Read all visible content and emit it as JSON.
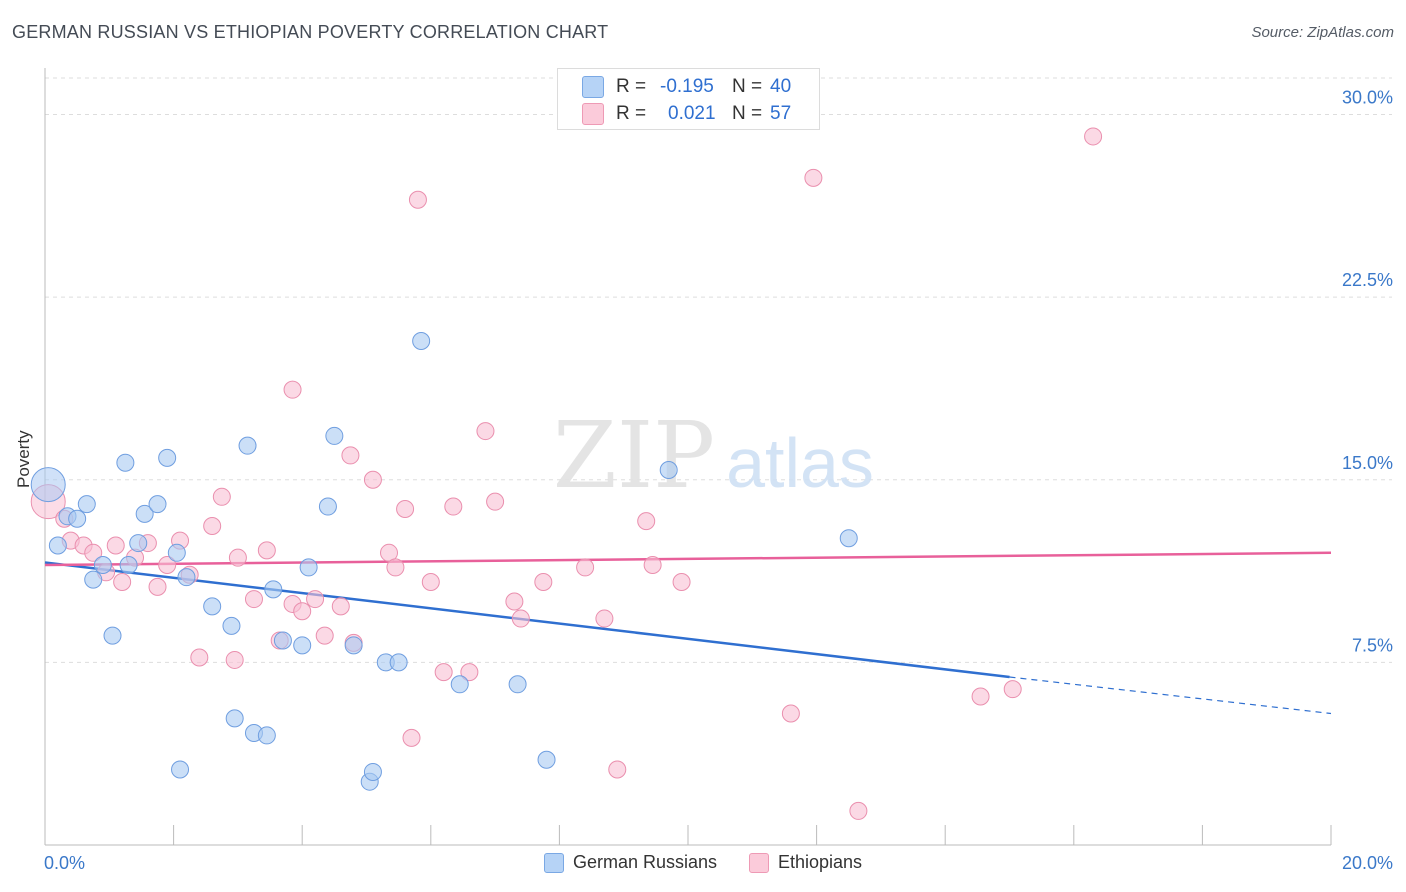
{
  "title": "GERMAN RUSSIAN VS ETHIOPIAN POVERTY CORRELATION CHART",
  "source": "Source: ZipAtlas.com",
  "watermark": {
    "zip": "ZIP",
    "atlas": "atlas"
  },
  "legend_top": [
    {
      "r_label": "R =",
      "r_value": "-0.195",
      "n_label": "N =",
      "n_value": "40",
      "color": "#b6d3f6"
    },
    {
      "r_label": "R =",
      "r_value": "0.021",
      "n_label": "N =",
      "n_value": "57",
      "color": "#fbcbda"
    }
  ],
  "legend_bottom": [
    "German Russians",
    "Ethiopians"
  ],
  "colors": {
    "blue_fill": "#a9c9f2",
    "blue_stroke": "#6f9ee0",
    "blue_line": "#2f6fd0",
    "pink_fill": "#f9c0d3",
    "pink_stroke": "#ea8fae",
    "pink_line": "#e8609a",
    "axis_text": "#3a78c9",
    "grid": "#dddddd"
  },
  "chart_data": {
    "type": "scatter",
    "title": "GERMAN RUSSIAN VS ETHIOPIAN POVERTY CORRELATION CHART",
    "xlabel": "",
    "ylabel": "Poverty",
    "xlim": [
      0,
      20
    ],
    "ylim": [
      0,
      31.5
    ],
    "x_tick_labels": [
      "0.0%",
      "20.0%"
    ],
    "y_ticks": [
      7.5,
      15.0,
      22.5,
      30.0
    ],
    "y_tick_labels": [
      "7.5%",
      "15.0%",
      "22.5%",
      "30.0%"
    ],
    "series": [
      {
        "name": "German Russians",
        "r": -0.195,
        "n": 40,
        "trend": {
          "x0": 0,
          "y0": 11.6,
          "x1": 15.0,
          "y1": 6.9,
          "dashed_to_x": 20.0,
          "dashed_to_y": 5.4
        },
        "points": [
          {
            "x": 0.05,
            "y": 14.8,
            "big": true
          },
          {
            "x": 0.2,
            "y": 12.3
          },
          {
            "x": 0.35,
            "y": 13.5
          },
          {
            "x": 0.5,
            "y": 13.4
          },
          {
            "x": 0.65,
            "y": 14.0
          },
          {
            "x": 0.75,
            "y": 10.9
          },
          {
            "x": 0.9,
            "y": 11.5
          },
          {
            "x": 1.05,
            "y": 8.6
          },
          {
            "x": 1.25,
            "y": 15.7
          },
          {
            "x": 1.3,
            "y": 11.5
          },
          {
            "x": 1.45,
            "y": 12.4
          },
          {
            "x": 1.55,
            "y": 13.6
          },
          {
            "x": 1.75,
            "y": 14.0
          },
          {
            "x": 1.9,
            "y": 15.9
          },
          {
            "x": 2.05,
            "y": 12.0
          },
          {
            "x": 2.2,
            "y": 11.0
          },
          {
            "x": 2.1,
            "y": 3.1
          },
          {
            "x": 2.6,
            "y": 9.8
          },
          {
            "x": 2.9,
            "y": 9.0
          },
          {
            "x": 2.95,
            "y": 5.2
          },
          {
            "x": 3.15,
            "y": 16.4
          },
          {
            "x": 3.25,
            "y": 4.6
          },
          {
            "x": 3.45,
            "y": 4.5
          },
          {
            "x": 3.55,
            "y": 10.5
          },
          {
            "x": 3.7,
            "y": 8.4
          },
          {
            "x": 4.0,
            "y": 8.2
          },
          {
            "x": 4.1,
            "y": 11.4
          },
          {
            "x": 4.4,
            "y": 13.9
          },
          {
            "x": 4.5,
            "y": 16.8
          },
          {
            "x": 4.8,
            "y": 8.2
          },
          {
            "x": 5.05,
            "y": 2.6
          },
          {
            "x": 5.1,
            "y": 3.0
          },
          {
            "x": 5.3,
            "y": 7.5
          },
          {
            "x": 5.5,
            "y": 7.5
          },
          {
            "x": 5.85,
            "y": 20.7
          },
          {
            "x": 6.45,
            "y": 6.6
          },
          {
            "x": 7.35,
            "y": 6.6
          },
          {
            "x": 7.8,
            "y": 3.5
          },
          {
            "x": 9.7,
            "y": 15.4
          },
          {
            "x": 12.5,
            "y": 12.6
          }
        ]
      },
      {
        "name": "Ethiopians",
        "r": 0.021,
        "n": 57,
        "trend": {
          "x0": 0,
          "y0": 11.5,
          "x1": 20.0,
          "y1": 12.0
        },
        "points": [
          {
            "x": 0.05,
            "y": 14.1,
            "big": true
          },
          {
            "x": 0.3,
            "y": 13.4
          },
          {
            "x": 0.4,
            "y": 12.5
          },
          {
            "x": 0.6,
            "y": 12.3
          },
          {
            "x": 0.75,
            "y": 12.0
          },
          {
            "x": 0.95,
            "y": 11.2
          },
          {
            "x": 1.1,
            "y": 12.3
          },
          {
            "x": 1.2,
            "y": 10.8
          },
          {
            "x": 1.4,
            "y": 11.8
          },
          {
            "x": 1.6,
            "y": 12.4
          },
          {
            "x": 1.75,
            "y": 10.6
          },
          {
            "x": 1.9,
            "y": 11.5
          },
          {
            "x": 2.1,
            "y": 12.5
          },
          {
            "x": 2.25,
            "y": 11.1
          },
          {
            "x": 2.4,
            "y": 7.7
          },
          {
            "x": 2.6,
            "y": 13.1
          },
          {
            "x": 2.75,
            "y": 14.3
          },
          {
            "x": 2.95,
            "y": 7.6
          },
          {
            "x": 3.0,
            "y": 11.8
          },
          {
            "x": 3.25,
            "y": 10.1
          },
          {
            "x": 3.45,
            "y": 12.1
          },
          {
            "x": 3.65,
            "y": 8.4
          },
          {
            "x": 3.85,
            "y": 9.9
          },
          {
            "x": 3.85,
            "y": 18.7
          },
          {
            "x": 4.0,
            "y": 9.6
          },
          {
            "x": 4.2,
            "y": 10.1
          },
          {
            "x": 4.35,
            "y": 8.6
          },
          {
            "x": 4.6,
            "y": 9.8
          },
          {
            "x": 4.8,
            "y": 8.3
          },
          {
            "x": 4.75,
            "y": 16.0
          },
          {
            "x": 5.1,
            "y": 15.0
          },
          {
            "x": 5.35,
            "y": 12.0
          },
          {
            "x": 5.45,
            "y": 11.4
          },
          {
            "x": 5.6,
            "y": 13.8
          },
          {
            "x": 5.7,
            "y": 4.4
          },
          {
            "x": 5.8,
            "y": 26.5
          },
          {
            "x": 6.0,
            "y": 10.8
          },
          {
            "x": 6.2,
            "y": 7.1
          },
          {
            "x": 6.35,
            "y": 13.9
          },
          {
            "x": 6.6,
            "y": 7.1
          },
          {
            "x": 6.85,
            "y": 17.0
          },
          {
            "x": 7.0,
            "y": 14.1
          },
          {
            "x": 7.3,
            "y": 10.0
          },
          {
            "x": 7.4,
            "y": 9.3
          },
          {
            "x": 7.75,
            "y": 10.8
          },
          {
            "x": 8.4,
            "y": 11.4
          },
          {
            "x": 8.7,
            "y": 9.3
          },
          {
            "x": 8.9,
            "y": 3.1
          },
          {
            "x": 9.35,
            "y": 13.3
          },
          {
            "x": 9.45,
            "y": 11.5
          },
          {
            "x": 9.9,
            "y": 10.8
          },
          {
            "x": 11.6,
            "y": 5.4
          },
          {
            "x": 11.95,
            "y": 27.4
          },
          {
            "x": 12.65,
            "y": 1.4
          },
          {
            "x": 14.55,
            "y": 6.1
          },
          {
            "x": 15.05,
            "y": 6.4
          },
          {
            "x": 16.3,
            "y": 29.1
          }
        ]
      }
    ]
  }
}
